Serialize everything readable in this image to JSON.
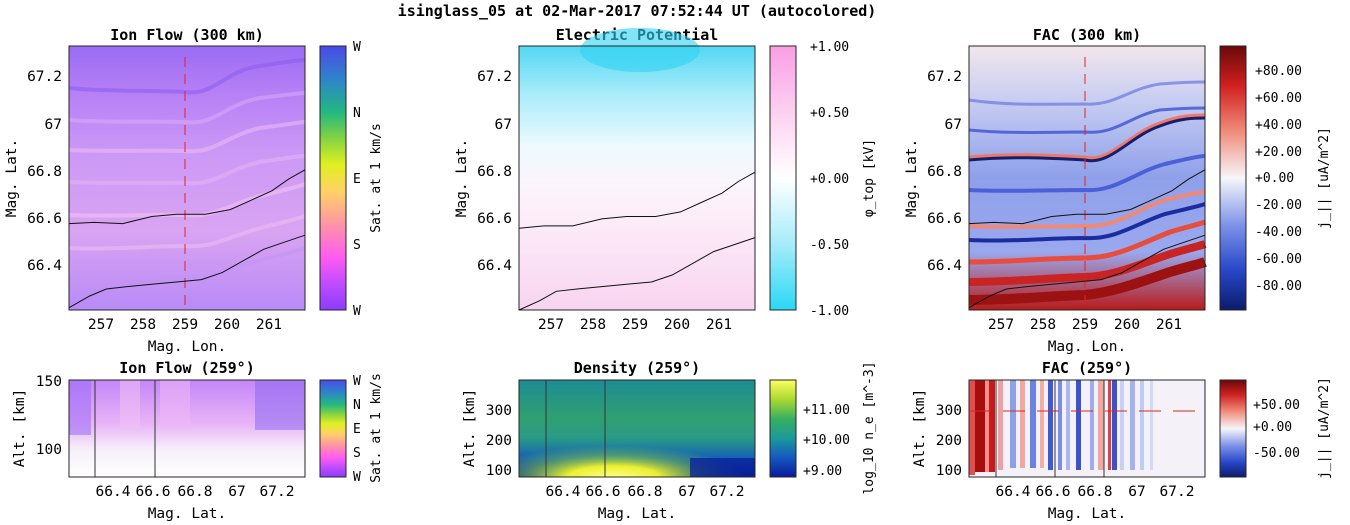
{
  "figure_title": "isinglass_05 at 02-Mar-2017 07:52:44 UT (autocolored)",
  "chart_data": [
    {
      "type": "heatmap",
      "title": "Ion Flow (300 km)",
      "xlabel": "Mag. Lon.",
      "ylabel": "Mag. Lat.",
      "xlim": [
        256.2,
        261.9
      ],
      "ylim": [
        66.21,
        67.34
      ],
      "xticks": [
        "257",
        "258",
        "259",
        "260",
        "261"
      ],
      "yticks": [
        "66.4",
        "66.6",
        "66.8",
        "67",
        "67.2"
      ],
      "colorbar": {
        "label": "Sat. at 1 km/s",
        "ticks": [
          "W",
          "N",
          "E",
          "S",
          "W"
        ]
      },
      "reference_lon": 259,
      "trajectories": [
        {
          "lon": [
            256.2,
            256.8,
            257.5,
            258.2,
            258.8,
            259.5,
            260.1,
            260.6,
            261.1,
            261.5,
            261.9
          ],
          "lat": [
            66.58,
            66.585,
            66.58,
            66.61,
            66.62,
            66.62,
            66.64,
            66.68,
            66.72,
            66.77,
            66.81
          ]
        },
        {
          "lon": [
            256.2,
            256.7,
            257.1,
            257.6,
            258.2,
            258.8,
            259.4,
            259.9,
            260.4,
            260.9,
            261.4,
            261.9
          ],
          "lat": [
            66.22,
            66.27,
            66.3,
            66.31,
            66.32,
            66.33,
            66.34,
            66.37,
            66.42,
            66.47,
            66.5,
            66.53
          ]
        }
      ]
    },
    {
      "type": "heatmap",
      "title": "Electric Potential",
      "xlabel": "",
      "ylabel": "Mag. Lat.",
      "xlim": [
        256.2,
        261.9
      ],
      "ylim": [
        66.21,
        67.34
      ],
      "xticks": [
        "257",
        "258",
        "259",
        "260",
        "261"
      ],
      "yticks": [
        "66.4",
        "66.6",
        "66.8",
        "67",
        "67.2"
      ],
      "colorbar": {
        "label": "φ_top [kV]",
        "ticks": [
          "+1.00",
          "+0.50",
          "+0.00",
          "-0.50",
          "-1.00"
        ]
      },
      "trajectories": [
        {
          "lon": [
            256.2,
            256.8,
            257.5,
            258.2,
            258.8,
            259.5,
            260.1,
            260.6,
            261.1,
            261.5,
            261.9
          ],
          "lat": [
            66.56,
            66.57,
            66.57,
            66.6,
            66.61,
            66.61,
            66.63,
            66.67,
            66.71,
            66.76,
            66.8
          ]
        },
        {
          "lon": [
            256.2,
            256.7,
            257.1,
            257.6,
            258.2,
            258.8,
            259.4,
            259.9,
            260.4,
            260.9,
            261.4,
            261.9
          ],
          "lat": [
            66.2,
            66.25,
            66.29,
            66.3,
            66.31,
            66.32,
            66.33,
            66.36,
            66.41,
            66.46,
            66.49,
            66.52
          ]
        }
      ]
    },
    {
      "type": "heatmap",
      "title": "FAC (300 km)",
      "xlabel": "Mag. Lon.",
      "ylabel": "Mag. Lat.",
      "xlim": [
        256.2,
        261.9
      ],
      "ylim": [
        66.21,
        67.34
      ],
      "xticks": [
        "257",
        "258",
        "259",
        "260",
        "261"
      ],
      "yticks": [
        "66.4",
        "66.6",
        "66.8",
        "67",
        "67.2"
      ],
      "colorbar": {
        "label": "j_|| [uA/m^2]",
        "ticks": [
          "+80.00",
          "+60.00",
          "+40.00",
          "+20.00",
          "+0.00",
          "-20.00",
          "-40.00",
          "-60.00",
          "-80.00"
        ]
      },
      "reference_lon": 259,
      "trajectories": [
        {
          "lon": [
            256.2,
            256.8,
            257.5,
            258.2,
            258.8,
            259.5,
            260.1,
            260.6,
            261.1,
            261.5,
            261.9
          ],
          "lat": [
            66.58,
            66.585,
            66.58,
            66.61,
            66.62,
            66.62,
            66.64,
            66.68,
            66.72,
            66.77,
            66.81
          ]
        },
        {
          "lon": [
            256.2,
            256.7,
            257.1,
            257.6,
            258.2,
            258.8,
            259.4,
            259.9,
            260.4,
            260.9,
            261.4,
            261.9
          ],
          "lat": [
            66.22,
            66.27,
            66.3,
            66.31,
            66.32,
            66.33,
            66.34,
            66.37,
            66.42,
            66.47,
            66.5,
            66.53
          ]
        }
      ]
    },
    {
      "type": "heatmap",
      "title": "Ion Flow (259°)",
      "xlabel": "Mag. Lat.",
      "ylabel": "Alt. [km]",
      "xlim": [
        66.2,
        67.35
      ],
      "ylim": [
        78,
        150
      ],
      "xticks": [
        "66.4",
        "66.6",
        "66.8",
        "67",
        "67.2"
      ],
      "yticks": [
        "100",
        "150"
      ],
      "colorbar": {
        "label": "Sat. at 1 km/s",
        "ticks": [
          "W",
          "N",
          "E",
          "S",
          "W"
        ]
      },
      "reference_lat": [
        66.33,
        66.62
      ]
    },
    {
      "type": "heatmap",
      "title": "Density (259°)",
      "xlabel": "Mag. Lat.",
      "ylabel": "Alt. [km]",
      "xlim": [
        66.2,
        67.35
      ],
      "ylim": [
        78,
        400
      ],
      "xticks": [
        "66.4",
        "66.6",
        "66.8",
        "67",
        "67.2"
      ],
      "yticks": [
        "100",
        "200",
        "300"
      ],
      "colorbar": {
        "label": "log_10 n_e [m^-3]",
        "ticks": [
          "+11.00",
          "+10.00",
          "+9.00"
        ]
      },
      "reference_lat": [
        66.33,
        66.62
      ]
    },
    {
      "type": "heatmap",
      "title": "FAC (259°)",
      "xlabel": "Mag. Lat.",
      "ylabel": "Alt. [km]",
      "xlim": [
        66.2,
        67.35
      ],
      "ylim": [
        78,
        400
      ],
      "xticks": [
        "66.4",
        "66.6",
        "66.8",
        "67",
        "67.2"
      ],
      "yticks": [
        "100",
        "200",
        "300"
      ],
      "colorbar": {
        "label": "j_|| [uA/m^2]",
        "ticks": [
          "+50.00",
          "+0.00",
          "-50.00"
        ]
      },
      "reference_alt": 300,
      "reference_lat": [
        66.33,
        66.62,
        66.86
      ]
    }
  ]
}
